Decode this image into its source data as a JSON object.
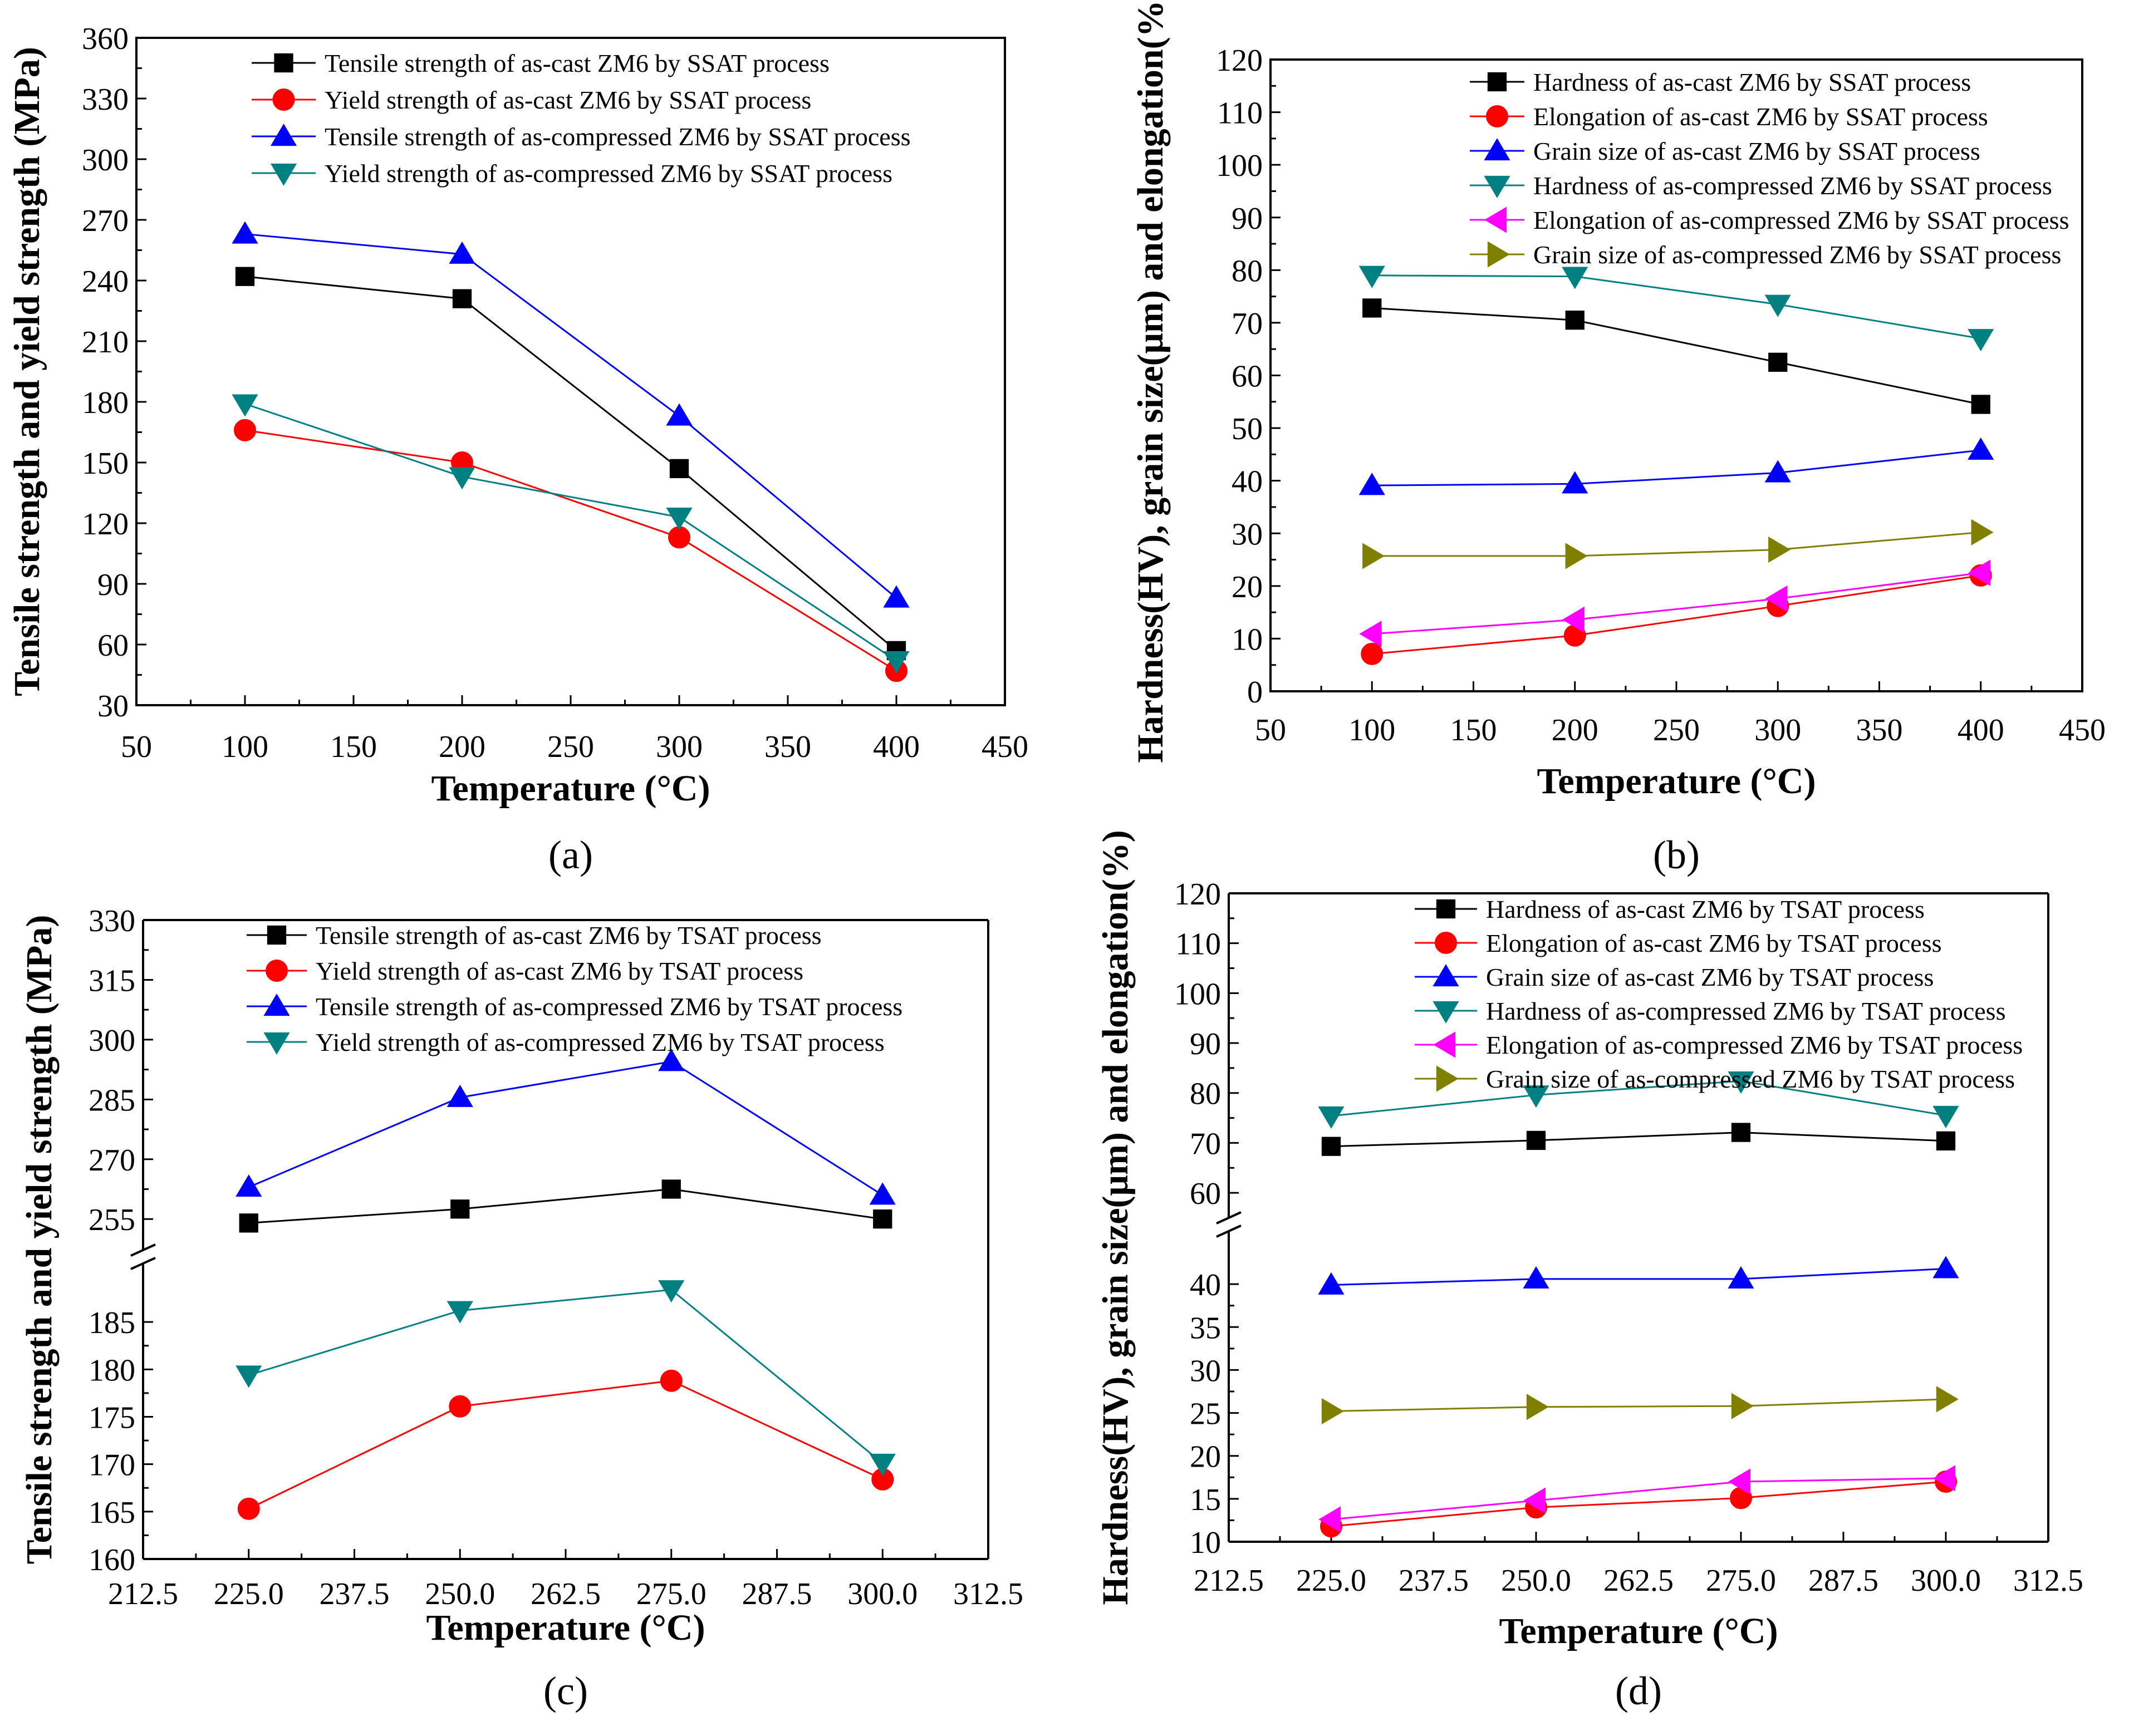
{
  "chart_data": [
    {
      "id": "a",
      "type": "line",
      "panel_label": "(a)",
      "xlabel": "Temperature (°C)",
      "ylabel": "Tensile strength and yield strength (MPa)",
      "xlim": [
        50,
        450
      ],
      "ylim": [
        30,
        360
      ],
      "xticks": [
        50,
        100,
        150,
        200,
        250,
        300,
        350,
        400,
        450
      ],
      "yticks": [
        30,
        60,
        90,
        120,
        150,
        180,
        210,
        240,
        270,
        300,
        330,
        360
      ],
      "legend_position": "top",
      "x": [
        100,
        200,
        300,
        400
      ],
      "series": [
        {
          "name": "Tensile strength of as-cast ZM6  by SSAT process",
          "color": "#000000",
          "marker": "square",
          "values": [
            242,
            231,
            147,
            57
          ]
        },
        {
          "name": "Yield strength of as-cast ZM6 by SSAT process",
          "color": "#ff0000",
          "marker": "circle",
          "values": [
            166,
            150,
            113,
            47
          ]
        },
        {
          "name": "Tensile strength of as-compressed ZM6 by SSAT process",
          "color": "#0000ff",
          "marker": "triangle-up",
          "values": [
            263,
            253,
            173,
            83
          ]
        },
        {
          "name": "Yield strength of as-compressed ZM6 by SSAT process",
          "color": "#008080",
          "marker": "triangle-down",
          "values": [
            179,
            143,
            123,
            52
          ]
        }
      ]
    },
    {
      "id": "b",
      "type": "line",
      "panel_label": "(b)",
      "xlabel": "Temperature (°C)",
      "ylabel": "Hardness(HV), grain size(μm) and elongation(%)",
      "xlim": [
        50,
        450
      ],
      "ylim": [
        0,
        120
      ],
      "xticks": [
        50,
        100,
        150,
        200,
        250,
        300,
        350,
        400,
        450
      ],
      "yticks": [
        0,
        10,
        20,
        30,
        40,
        50,
        60,
        70,
        80,
        90,
        100,
        110,
        120
      ],
      "legend_position": "top",
      "x": [
        100,
        200,
        300,
        400
      ],
      "series": [
        {
          "name": "Hardness of as-cast ZM6 by SSAT process",
          "color": "#000000",
          "marker": "square",
          "values": [
            72.8,
            70.5,
            62.5,
            54.5
          ]
        },
        {
          "name": "Elongation of as-cast ZM6 by SSAT process",
          "color": "#ff0000",
          "marker": "circle",
          "values": [
            7.1,
            10.6,
            16.2,
            22.0
          ]
        },
        {
          "name": "Grain size of as-cast ZM6 by SSAT process",
          "color": "#0000ff",
          "marker": "triangle-up",
          "values": [
            39.1,
            39.4,
            41.5,
            45.8
          ]
        },
        {
          "name": "Hardness of as-compressed ZM6 by SSAT process",
          "color": "#008080",
          "marker": "triangle-down",
          "values": [
            79.0,
            78.8,
            73.5,
            67.0
          ]
        },
        {
          "name": "Elongation of as-compressed ZM6 by SSAT process",
          "color": "#ff00ff",
          "marker": "triangle-left",
          "values": [
            10.9,
            13.6,
            17.6,
            22.5
          ]
        },
        {
          "name": "Grain size of as-compressed ZM6 by SSAT process",
          "color": "#808000",
          "marker": "triangle-right",
          "values": [
            25.7,
            25.7,
            26.9,
            30.2
          ]
        }
      ]
    },
    {
      "id": "c",
      "type": "line",
      "panel_label": "(c)",
      "xlabel": "Temperature (°C)",
      "ylabel": "Tensile strength and yield strength (MPa)",
      "xlim": [
        212.5,
        312.5
      ],
      "xticks": [
        "212.5",
        "225.0",
        "237.5",
        "250.0",
        "262.5",
        "275.0",
        "287.5",
        "300.0",
        "312.5"
      ],
      "y_break": true,
      "ylim_lower": [
        160,
        190
      ],
      "ylim_upper": [
        250,
        330
      ],
      "yticks_lower": [
        160,
        165,
        170,
        175,
        180,
        185
      ],
      "yticks_upper": [
        255,
        270,
        285,
        300,
        315,
        330
      ],
      "legend_position": "top",
      "x": [
        225,
        250,
        275,
        300
      ],
      "series": [
        {
          "name": "Tensile strength of as-cast ZM6 by TSAT process",
          "color": "#000000",
          "marker": "square",
          "values": [
            254,
            257.5,
            262.5,
            255
          ]
        },
        {
          "name": "Yield strength of as-cast ZM6 by TSAT process",
          "color": "#ff0000",
          "marker": "circle",
          "values": [
            165.3,
            176.1,
            178.8,
            168.4
          ]
        },
        {
          "name": "Tensile strength of as-compressed ZM6 by TSAT process",
          "color": "#0000ff",
          "marker": "triangle-up",
          "values": [
            263,
            285.5,
            294.5,
            261
          ]
        },
        {
          "name": "Yield strength of as-compressed ZM6 by TSAT process",
          "color": "#008080",
          "marker": "triangle-down",
          "values": [
            179.4,
            186.2,
            188.4,
            170.1
          ]
        }
      ]
    },
    {
      "id": "d",
      "type": "line",
      "panel_label": "(d)",
      "xlabel": "Temperature (°C)",
      "ylabel": "Hardness(HV), grain size(μm) and elongation(%)",
      "xlim": [
        212.5,
        312.5
      ],
      "xticks": [
        "212.5",
        "225.0",
        "237.5",
        "250.0",
        "262.5",
        "275.0",
        "287.5",
        "300.0",
        "312.5"
      ],
      "y_break": true,
      "ylim_lower": [
        10,
        45
      ],
      "ylim_upper": [
        57,
        120
      ],
      "yticks_lower": [
        10,
        15,
        20,
        25,
        30,
        35,
        40
      ],
      "yticks_upper": [
        60,
        70,
        80,
        90,
        100,
        110,
        120
      ],
      "legend_position": "top",
      "x": [
        225,
        250,
        275,
        300
      ],
      "series": [
        {
          "name": "Hardness of as-cast ZM6 by TSAT process",
          "color": "#000000",
          "marker": "square",
          "values": [
            69.3,
            70.5,
            72.1,
            70.4
          ]
        },
        {
          "name": "Elongation of as-cast ZM6 by TSAT process",
          "color": "#ff0000",
          "marker": "circle",
          "values": [
            11.8,
            14.0,
            15.1,
            17.0
          ]
        },
        {
          "name": "Grain size of as-cast ZM6 by TSAT process",
          "color": "#0000ff",
          "marker": "triangle-up",
          "values": [
            39.9,
            40.6,
            40.6,
            41.8
          ]
        },
        {
          "name": "Hardness of as-compressed ZM6 by TSAT process",
          "color": "#008080",
          "marker": "triangle-down",
          "values": [
            75.4,
            79.6,
            82.4,
            75.5
          ]
        },
        {
          "name": "Elongation of as-compressed ZM6 by TSAT process",
          "color": "#ff00ff",
          "marker": "triangle-left",
          "values": [
            12.6,
            14.8,
            17.0,
            17.4
          ]
        },
        {
          "name": "Grain size of as-compressed ZM6 by TSAT process",
          "color": "#808000",
          "marker": "triangle-right",
          "values": [
            25.2,
            25.7,
            25.8,
            26.6
          ]
        }
      ]
    }
  ]
}
